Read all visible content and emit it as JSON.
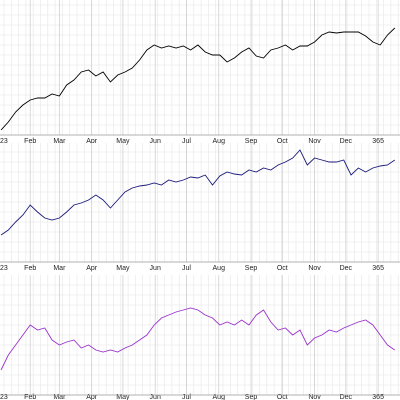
{
  "chart_data": [
    {
      "type": "line",
      "color": "#000000",
      "x": [
        3,
        10,
        17,
        24,
        31,
        38,
        45,
        52,
        59,
        66,
        73,
        80,
        87,
        94,
        101,
        108,
        115,
        122,
        129,
        136,
        143,
        150,
        157,
        164,
        171,
        178,
        185,
        192,
        199,
        206,
        213,
        220,
        227,
        234,
        241,
        248,
        255,
        262,
        269,
        276,
        283,
        290,
        297,
        304,
        311,
        318,
        325,
        332,
        339,
        346,
        353,
        360,
        367,
        374,
        381
      ],
      "values": [
        5,
        13,
        23,
        30,
        35,
        37,
        37,
        41,
        39,
        50,
        55,
        63,
        65,
        59,
        63,
        53,
        60,
        63,
        67,
        75,
        85,
        90,
        87,
        89,
        87,
        89,
        85,
        90,
        83,
        80,
        80,
        73,
        77,
        83,
        87,
        79,
        77,
        85,
        87,
        90,
        85,
        89,
        89,
        93,
        100,
        103,
        102,
        103,
        103,
        103,
        99,
        93,
        90,
        100,
        107
      ],
      "xlim": [
        2,
        386
      ],
      "ylim": [
        0,
        135
      ],
      "xticks": [
        {
          "value": 0,
          "label": "23"
        },
        {
          "value": 31,
          "label": "Feb"
        },
        {
          "value": 59,
          "label": "Mar"
        },
        {
          "value": 90,
          "label": "Apr"
        },
        {
          "value": 120,
          "label": "May"
        },
        {
          "value": 151,
          "label": "Jun"
        },
        {
          "value": 181,
          "label": "Jul"
        },
        {
          "value": 212,
          "label": "Aug"
        },
        {
          "value": 243,
          "label": "Sep"
        },
        {
          "value": 273,
          "label": "Oct"
        },
        {
          "value": 304,
          "label": "Nov"
        },
        {
          "value": 334,
          "label": "Dec"
        },
        365
      ]
    },
    {
      "type": "line",
      "color": "#1a1a7a",
      "x": [
        3,
        10,
        17,
        24,
        31,
        38,
        45,
        52,
        59,
        66,
        73,
        80,
        87,
        94,
        101,
        108,
        115,
        122,
        129,
        136,
        143,
        150,
        157,
        164,
        171,
        178,
        185,
        192,
        199,
        206,
        213,
        220,
        227,
        234,
        241,
        248,
        255,
        262,
        269,
        276,
        283,
        290,
        297,
        304,
        311,
        318,
        325,
        332,
        339,
        346,
        353,
        360,
        367,
        374,
        381
      ],
      "values": [
        27,
        32,
        40,
        47,
        57,
        50,
        44,
        42,
        44,
        50,
        57,
        59,
        62,
        67,
        62,
        54,
        62,
        70,
        74,
        76,
        77,
        79,
        77,
        82,
        80,
        82,
        85,
        84,
        87,
        77,
        86,
        90,
        88,
        87,
        92,
        90,
        94,
        92,
        97,
        100,
        104,
        112,
        97,
        104,
        102,
        100,
        100,
        102,
        87,
        94,
        90,
        94,
        96,
        97,
        102
      ],
      "xlim": [
        2,
        386
      ],
      "ylim": [
        0,
        119
      ],
      "xticks": [
        {
          "value": 0,
          "label": "23"
        },
        {
          "value": 31,
          "label": "Feb"
        },
        {
          "value": 59,
          "label": "Mar"
        },
        {
          "value": 90,
          "label": "Apr"
        },
        {
          "value": 120,
          "label": "May"
        },
        {
          "value": 151,
          "label": "Jun"
        },
        {
          "value": 181,
          "label": "Jul"
        },
        {
          "value": 212,
          "label": "Aug"
        },
        {
          "value": 243,
          "label": "Sep"
        },
        {
          "value": 273,
          "label": "Oct"
        },
        {
          "value": 304,
          "label": "Nov"
        },
        {
          "value": 334,
          "label": "Dec"
        },
        365
      ]
    },
    {
      "type": "line",
      "color": "#9933cc",
      "x": [
        3,
        10,
        17,
        24,
        31,
        38,
        45,
        52,
        59,
        66,
        73,
        80,
        87,
        94,
        101,
        108,
        115,
        122,
        129,
        136,
        143,
        150,
        157,
        164,
        171,
        178,
        185,
        192,
        199,
        206,
        213,
        220,
        227,
        234,
        241,
        248,
        255,
        262,
        269,
        276,
        283,
        290,
        297,
        304,
        311,
        318,
        325,
        332,
        339,
        346,
        353,
        360,
        367,
        374,
        381
      ],
      "values": [
        25,
        40,
        50,
        60,
        70,
        65,
        67,
        55,
        50,
        53,
        55,
        47,
        50,
        45,
        43,
        45,
        43,
        47,
        50,
        55,
        60,
        70,
        77,
        80,
        83,
        85,
        87,
        85,
        80,
        77,
        70,
        73,
        70,
        75,
        70,
        80,
        85,
        73,
        65,
        67,
        60,
        65,
        50,
        57,
        60,
        65,
        63,
        67,
        70,
        73,
        75,
        70,
        60,
        50,
        45
      ],
      "xlim": [
        2,
        386
      ],
      "ylim": [
        0,
        120
      ],
      "xticks": [
        {
          "value": 0,
          "label": "23"
        },
        {
          "value": 31,
          "label": "Feb"
        },
        {
          "value": 59,
          "label": "Mar"
        },
        {
          "value": 90,
          "label": "Apr"
        },
        {
          "value": 120,
          "label": "May"
        },
        {
          "value": 151,
          "label": "Jun"
        },
        {
          "value": 181,
          "label": "Jul"
        },
        {
          "value": 212,
          "label": "Aug"
        },
        {
          "value": 243,
          "label": "Sep"
        },
        {
          "value": 273,
          "label": "Oct"
        },
        {
          "value": 304,
          "label": "Nov"
        },
        {
          "value": 334,
          "label": "Dec"
        },
        365
      ]
    }
  ]
}
